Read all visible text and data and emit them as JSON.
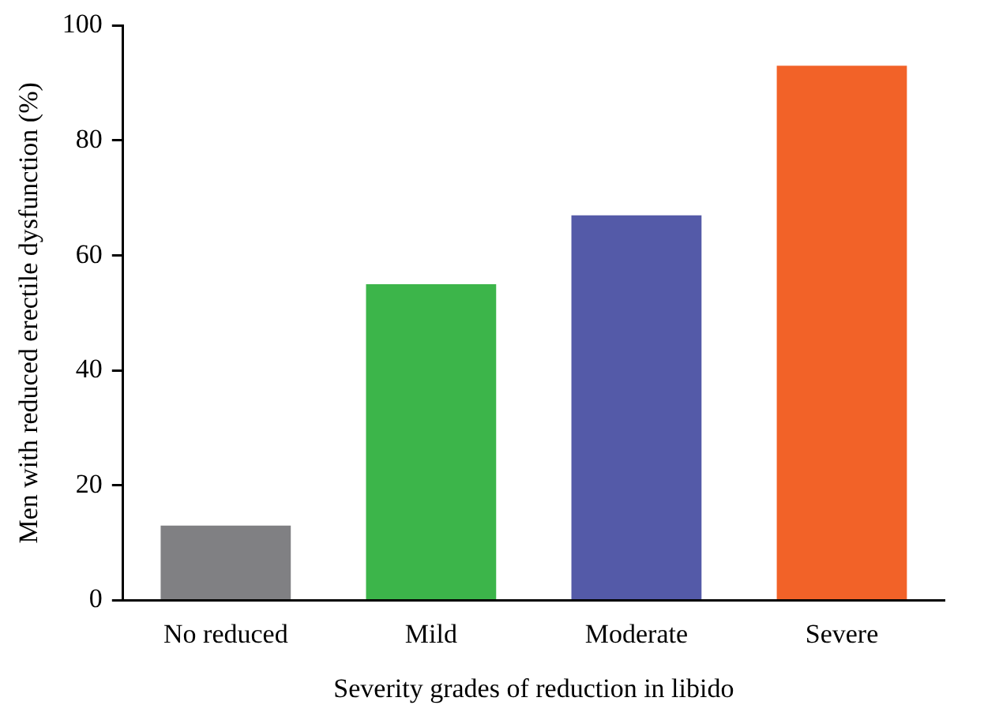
{
  "chart_data": {
    "type": "bar",
    "xlabel": "Severity grades of reduction in libido",
    "ylabel": "Men with reduced erectile dysfunction (%)",
    "categories": [
      "No reduced",
      "Mild",
      "Moderate",
      "Severe"
    ],
    "values": [
      13,
      55,
      67,
      93
    ],
    "colors": [
      "#808083",
      "#3cb54a",
      "#545aa8",
      "#f26228"
    ],
    "ylim": [
      0,
      100
    ],
    "yticks": [
      0,
      20,
      40,
      60,
      80,
      100
    ],
    "grid": false,
    "legend": false
  }
}
